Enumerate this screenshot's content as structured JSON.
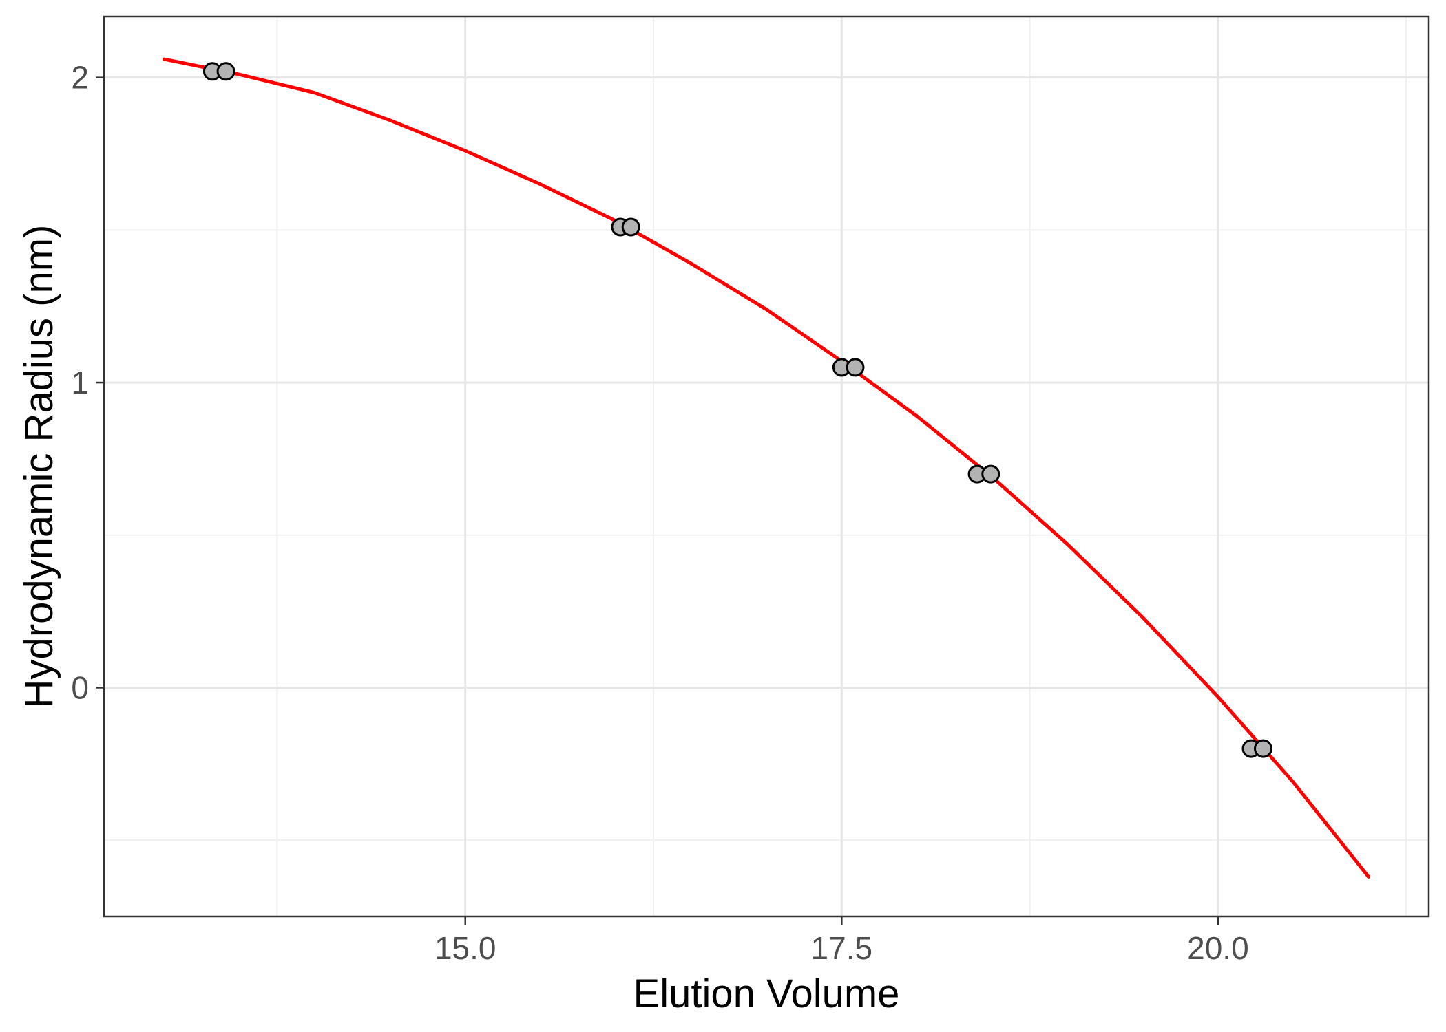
{
  "chart_data": {
    "type": "scatter",
    "title": "",
    "xlabel": "Elution Volume",
    "ylabel": "Hydrodynamic Radius (nm)",
    "xlim": [
      12.6,
      21.4
    ],
    "ylim": [
      -0.75,
      2.2
    ],
    "x_ticks": [
      15.0,
      17.5,
      20.0
    ],
    "x_tick_labels": [
      "15.0",
      "17.5",
      "20.0"
    ],
    "x_minor_ticks": [
      13.75,
      16.25,
      18.75,
      21.25
    ],
    "y_ticks": [
      0,
      1,
      2
    ],
    "y_tick_labels": [
      "0",
      "1",
      "2"
    ],
    "y_minor_ticks": [
      -0.5,
      0.5,
      1.5
    ],
    "grid": true,
    "point_fill": "#b3b3b3",
    "point_stroke": "#000000",
    "fit_color": "#ff0000",
    "series": [
      {
        "type": "scatter",
        "points": [
          {
            "x": 13.32,
            "y": 2.02
          },
          {
            "x": 13.41,
            "y": 2.02
          },
          {
            "x": 16.03,
            "y": 1.51
          },
          {
            "x": 16.1,
            "y": 1.51
          },
          {
            "x": 17.5,
            "y": 1.05
          },
          {
            "x": 17.59,
            "y": 1.05
          },
          {
            "x": 18.4,
            "y": 0.7
          },
          {
            "x": 18.49,
            "y": 0.7
          },
          {
            "x": 20.22,
            "y": -0.2
          },
          {
            "x": 20.3,
            "y": -0.2
          }
        ]
      },
      {
        "type": "line",
        "points": [
          {
            "x": 13.0,
            "y": 2.06
          },
          {
            "x": 13.5,
            "y": 2.01
          },
          {
            "x": 14.0,
            "y": 1.95
          },
          {
            "x": 14.5,
            "y": 1.86
          },
          {
            "x": 15.0,
            "y": 1.76
          },
          {
            "x": 15.5,
            "y": 1.65
          },
          {
            "x": 16.0,
            "y": 1.53
          },
          {
            "x": 16.5,
            "y": 1.39
          },
          {
            "x": 17.0,
            "y": 1.24
          },
          {
            "x": 17.5,
            "y": 1.07
          },
          {
            "x": 18.0,
            "y": 0.89
          },
          {
            "x": 18.5,
            "y": 0.69
          },
          {
            "x": 19.0,
            "y": 0.47
          },
          {
            "x": 19.5,
            "y": 0.23
          },
          {
            "x": 20.0,
            "y": -0.03
          },
          {
            "x": 20.5,
            "y": -0.31
          },
          {
            "x": 21.0,
            "y": -0.62
          }
        ]
      }
    ]
  }
}
